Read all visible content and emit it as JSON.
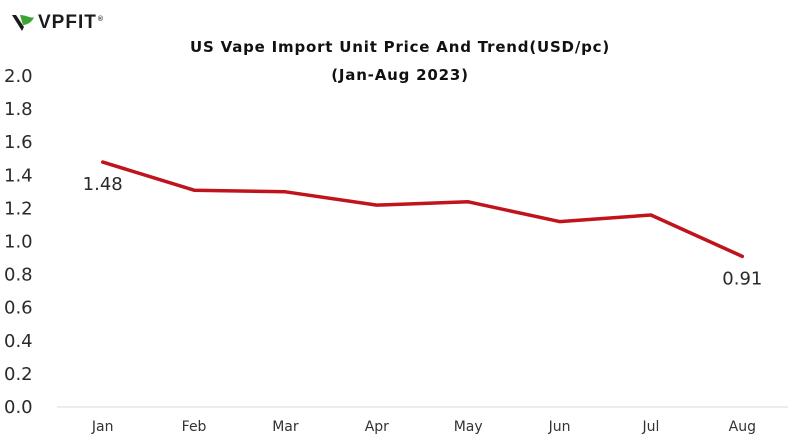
{
  "logo": {
    "text": "VPFIT",
    "mark": "®"
  },
  "chart_data": {
    "type": "line",
    "title": "US Vape Import Unit Price And Trend(USD/pc)",
    "subtitle": "(Jan-Aug 2023)",
    "categories": [
      "Jan",
      "Feb",
      "Mar",
      "Apr",
      "May",
      "Jun",
      "Jul",
      "Aug"
    ],
    "series": [
      {
        "values": [
          1.48,
          1.31,
          1.3,
          1.22,
          1.24,
          1.12,
          1.16,
          0.91
        ],
        "color": "#c0141c"
      }
    ],
    "ylim": [
      0,
      2.0
    ],
    "yticks": [
      "0.0",
      "0.2",
      "0.4",
      "0.6",
      "0.8",
      "1.0",
      "1.2",
      "1.4",
      "1.6",
      "1.8",
      "2.0"
    ],
    "data_labels": [
      {
        "index": 0,
        "text": "1.48"
      },
      {
        "index": 7,
        "text": "0.91"
      }
    ],
    "grid": false,
    "legend": "none"
  }
}
